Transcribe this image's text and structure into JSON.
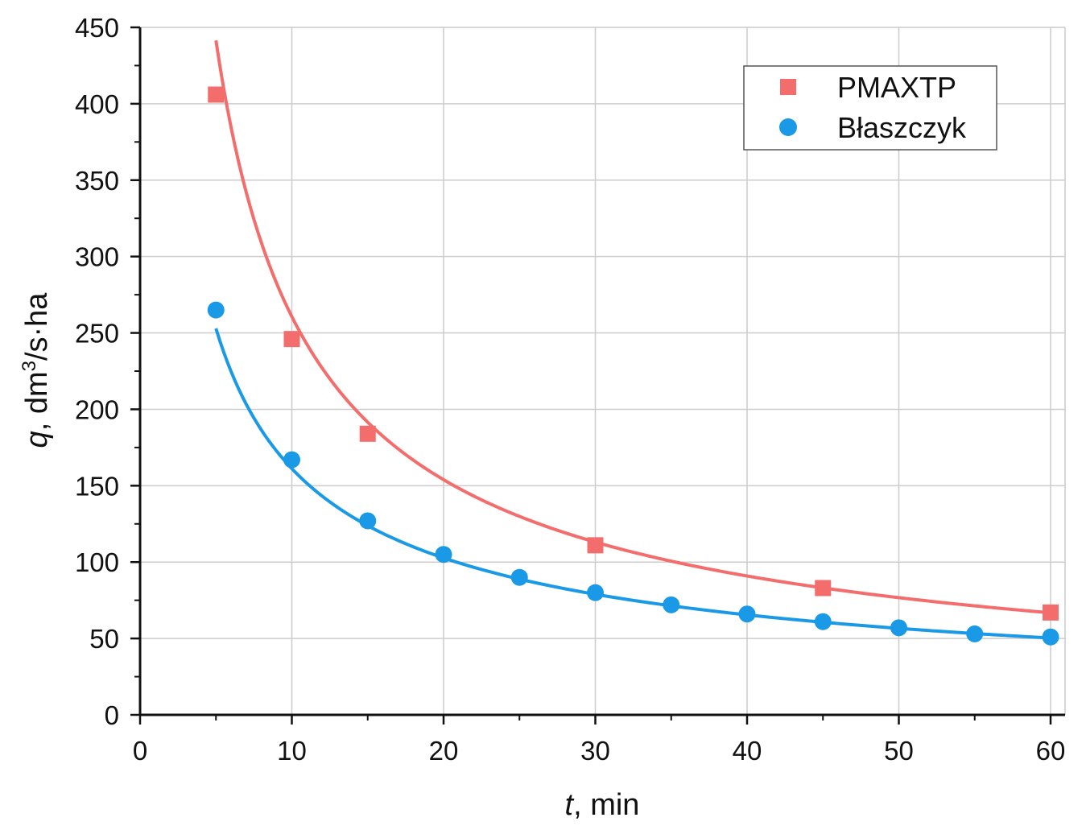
{
  "chart_data": {
    "type": "scatter",
    "title": "",
    "xlabel": {
      "italic": "t",
      "rest": ", min"
    },
    "ylabel": {
      "italic": "q",
      "rest": ", dm",
      "sup": "3",
      "tail": "/s·ha"
    },
    "xlim": [
      0,
      61
    ],
    "ylim": [
      0,
      450
    ],
    "x_ticks": [
      0,
      10,
      20,
      30,
      40,
      50,
      60
    ],
    "y_ticks": [
      0,
      50,
      100,
      150,
      200,
      250,
      300,
      350,
      400,
      450
    ],
    "grid": true,
    "legend_position": "top-right",
    "series": [
      {
        "name": "PMAXTP",
        "marker": "square",
        "color": "#f36d6d",
        "fit": "power",
        "fit_params": {
          "a": 1500,
          "b": -0.76
        },
        "x": [
          5,
          10,
          15,
          30,
          45,
          60
        ],
        "y": [
          406,
          246,
          184,
          111,
          83,
          67
        ]
      },
      {
        "name": "Błaszczyk",
        "marker": "circle",
        "color": "#1a9ae6",
        "fit": "power",
        "fit_params": {
          "a": 720,
          "b": -0.65
        },
        "x": [
          5,
          10,
          15,
          20,
          25,
          30,
          35,
          40,
          45,
          50,
          55,
          60
        ],
        "y": [
          265,
          167,
          127,
          105,
          90,
          80,
          72,
          66,
          61,
          57,
          53,
          51
        ]
      }
    ]
  }
}
